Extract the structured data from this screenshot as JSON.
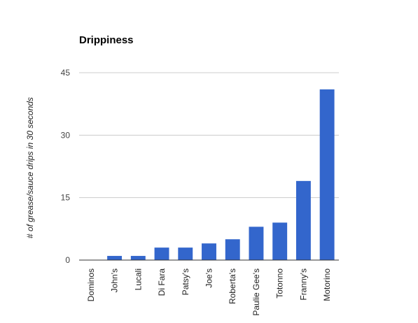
{
  "chart_data": {
    "type": "bar",
    "title": "Drippiness",
    "xlabel": "",
    "ylabel": "# of grease/sauce drips in 30 seconds",
    "categories": [
      "Dominos",
      "John's",
      "Lucali",
      "Di Fara",
      "Patsy's",
      "Joe's",
      "Roberta's",
      "Paulie Gee's",
      "Totonno",
      "Franny's",
      "Motorino"
    ],
    "values": [
      0,
      1,
      1,
      3,
      3,
      4,
      5,
      8,
      9,
      19,
      41
    ],
    "ylim": [
      0,
      45
    ],
    "yticks": [
      "0",
      "15",
      "30",
      "45"
    ],
    "grid": true,
    "legend": "none",
    "bar_color": "#3366cc"
  }
}
